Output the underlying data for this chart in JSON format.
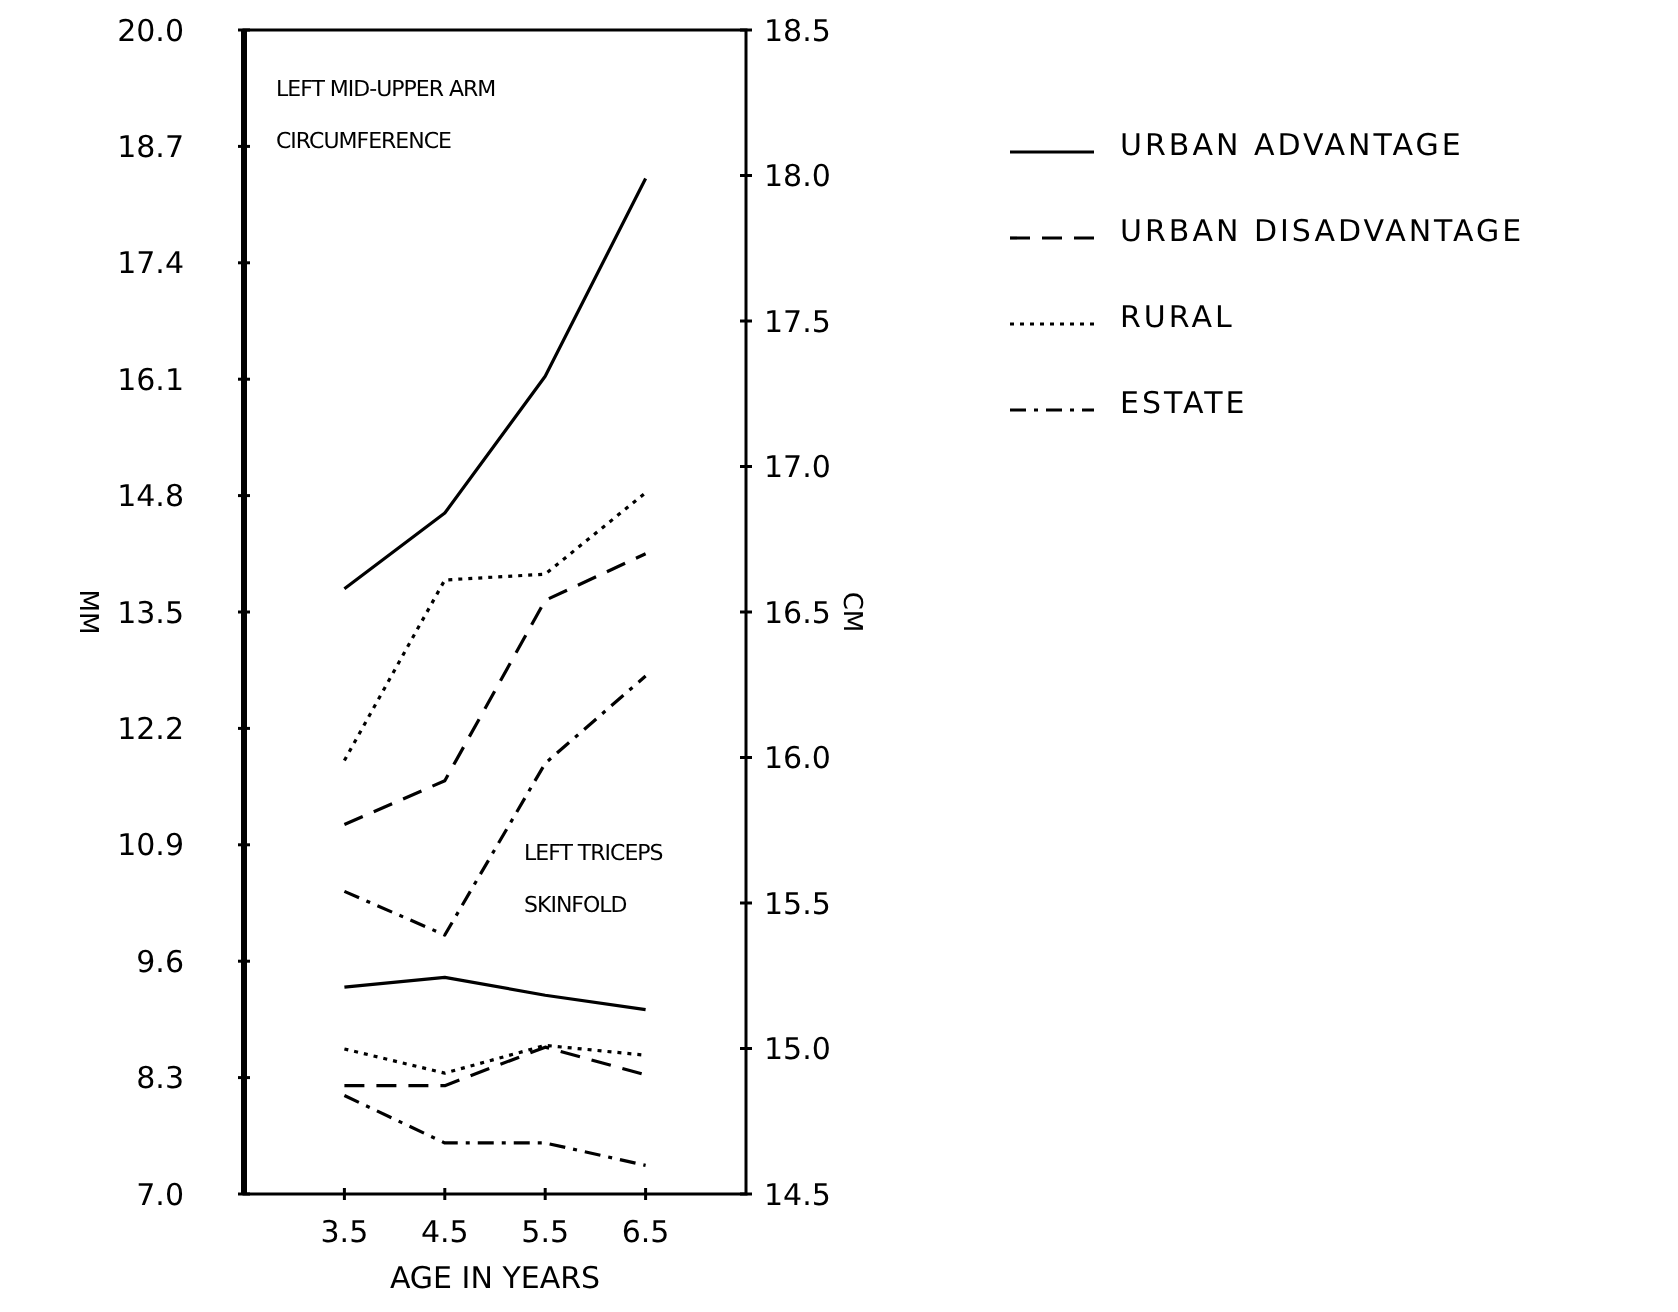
{
  "chart_data": {
    "type": "line",
    "xlabel": "AGE IN YEARS",
    "ylabel": "MM",
    "y2label": "CM",
    "annotations": [
      "LEFT MID-UPPER ARM CIRCUMFERENCE",
      "LEFT TRICEPS SKINFOLD"
    ],
    "x": [
      3.5,
      4.5,
      5.5,
      6.5
    ],
    "xlim": [
      2.5,
      7.5
    ],
    "xticks": [
      3.5,
      4.5,
      5.5,
      6.5
    ],
    "ylim": [
      7,
      20
    ],
    "yticks": [
      {
        "value": 7,
        "label": "7.0"
      },
      8.3,
      9.6,
      10.9,
      12.2,
      13.5,
      14.8,
      16.1,
      17.4,
      18.7,
      {
        "value": 20,
        "label": "20.0"
      }
    ],
    "y2lim": [
      14.5,
      18.5
    ],
    "y2ticks": [
      14.5,
      {
        "value": 15,
        "label": "15.0"
      },
      15.5,
      {
        "value": 16,
        "label": "16.0"
      },
      16.5,
      {
        "value": 17,
        "label": "17.0"
      },
      17.5,
      {
        "value": 18,
        "label": "18.0"
      },
      18.5
    ],
    "grid": false,
    "legend": "top right",
    "marker": "none",
    "series": [
      {
        "name": "URBAN ADVANTAGE",
        "color": "#000000",
        "line_style": "solid",
        "axis": "y2",
        "values": [
          16.58,
          16.84,
          17.31,
          17.99
        ]
      },
      {
        "name": "URBAN DISADVANTAGE",
        "color": "#000000",
        "line_style": "dashed",
        "axis": "y2",
        "values": [
          15.77,
          15.92,
          16.54,
          16.7
        ]
      },
      {
        "name": "RURAL",
        "color": "#000000",
        "line_style": "dotted",
        "axis": "y2",
        "values": [
          15.99,
          16.61,
          16.63,
          16.91
        ]
      },
      {
        "name": "ESTATE",
        "color": "#000000",
        "line_style": "dashdot",
        "axis": "y2",
        "values": [
          15.54,
          15.39,
          15.98,
          16.28
        ]
      },
      {
        "color": "#000000",
        "line_style": "solid",
        "values": [
          9.31,
          9.42,
          9.22,
          9.06
        ]
      },
      {
        "color": "#000000",
        "line_style": "dashed",
        "values": [
          8.21,
          8.21,
          8.64,
          8.33
        ]
      },
      {
        "color": "#000000",
        "line_style": "dotted",
        "values": [
          8.62,
          8.35,
          8.66,
          8.55
        ]
      },
      {
        "color": "#000000",
        "line_style": "dashdot",
        "values": [
          8.1,
          7.57,
          7.57,
          7.32
        ]
      }
    ]
  }
}
